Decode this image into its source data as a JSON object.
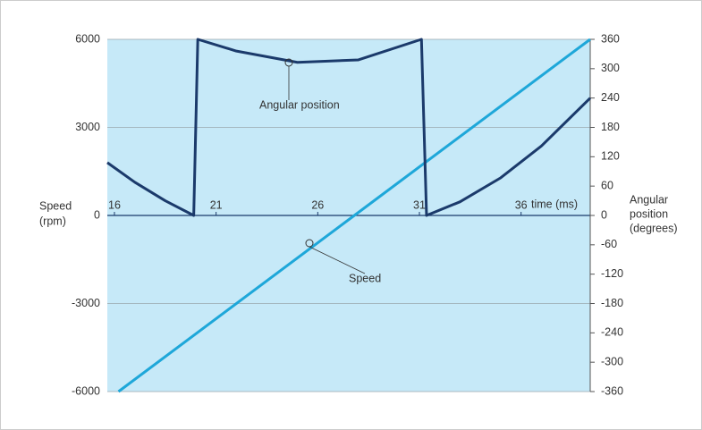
{
  "chart_data": {
    "type": "line",
    "xlabel": "time (ms)",
    "ylabel": [
      "Speed",
      "(rpm)"
    ],
    "y2label": [
      "Angular",
      "position",
      "(degrees)"
    ],
    "xlim": [
      15.65,
      39.4
    ],
    "xticks": [
      16,
      21,
      26,
      31,
      36
    ],
    "ylim": [
      -6000,
      6000
    ],
    "yticks": [
      -6000,
      -3000,
      0,
      3000,
      6000
    ],
    "y2lim": [
      -360,
      360
    ],
    "y2ticks": [
      -360,
      -300,
      -240,
      -180,
      -120,
      -60,
      0,
      60,
      120,
      180,
      240,
      300,
      360
    ],
    "grid": true,
    "series": [
      {
        "name": "Speed",
        "color": "#1ea7d9",
        "axis": "y",
        "x": [
          16.2,
          27.8,
          39.4
        ],
        "values": [
          -6000,
          0,
          6000
        ]
      },
      {
        "name": "Angular position",
        "color": "#1b3a6b",
        "axis": "y2",
        "x": [
          15.65,
          17,
          18.5,
          19.9,
          20.1,
          22,
          25,
          28,
          31.1,
          31.35,
          33,
          35,
          37,
          39.4
        ],
        "values": [
          108,
          68,
          30,
          0,
          360,
          336,
          313,
          318,
          360,
          0,
          28,
          77,
          142,
          240
        ]
      }
    ]
  }
}
